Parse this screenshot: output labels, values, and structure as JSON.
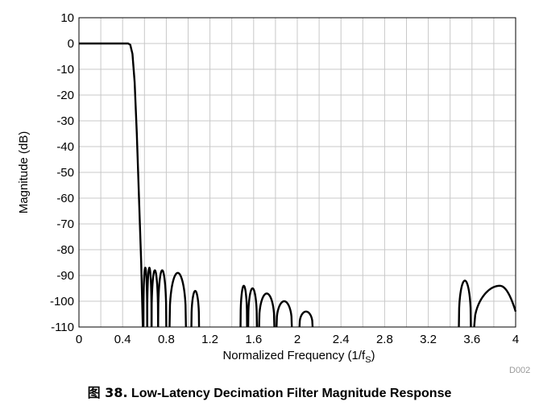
{
  "figure": {
    "caption_prefix": "图 38.",
    "caption_title": "Low-Latency Decimation Filter Magnitude Response",
    "code": "D002"
  },
  "chart_data": {
    "type": "line",
    "xlabel_main": "Normalized Frequency (1/f",
    "xlabel_sub": "S",
    "xlabel_end": ")",
    "ylabel": "Magnitude (dB)",
    "xlim": [
      0,
      4
    ],
    "ylim": [
      -110,
      10
    ],
    "grid": true,
    "x_ticks": [
      0,
      0.4,
      0.8,
      1.2,
      1.6,
      2,
      2.4,
      2.8,
      3.2,
      3.6,
      4
    ],
    "x_tick_labels": [
      "0",
      "0.4",
      "0.8",
      "1.2",
      "1.6",
      "2",
      "2.4",
      "2.8",
      "3.2",
      "3.6",
      "4"
    ],
    "x_minor_step": 0.2,
    "y_ticks": [
      10,
      0,
      -10,
      -20,
      -30,
      -40,
      -50,
      -60,
      -70,
      -80,
      -90,
      -100,
      -110
    ],
    "y_tick_labels": [
      "10",
      "0",
      "-10",
      "-20",
      "-30",
      "-40",
      "-50",
      "-60",
      "-70",
      "-80",
      "-90",
      "-100",
      "-110"
    ],
    "series": [
      {
        "color": "#000000",
        "passband": [
          [
            0,
            0
          ],
          [
            0.45,
            0
          ],
          [
            0.47,
            -0.5
          ],
          [
            0.49,
            -4
          ],
          [
            0.51,
            -15
          ],
          [
            0.53,
            -35
          ],
          [
            0.55,
            -60
          ],
          [
            0.57,
            -85
          ],
          [
            0.585,
            -110
          ]
        ],
        "stopband_lobes": [
          {
            "from": 0.59,
            "to": 0.625,
            "peak": -87
          },
          {
            "from": 0.625,
            "to": 0.665,
            "peak": -87
          },
          {
            "from": 0.665,
            "to": 0.725,
            "peak": -88
          },
          {
            "from": 0.725,
            "to": 0.8,
            "peak": -88
          },
          {
            "from": 0.83,
            "to": 0.98,
            "peak": -89
          },
          {
            "from": 1.03,
            "to": 1.1,
            "peak": -96
          },
          {
            "from": 1.48,
            "to": 1.54,
            "peak": -94
          },
          {
            "from": 1.55,
            "to": 1.63,
            "peak": -95
          },
          {
            "from": 1.65,
            "to": 1.79,
            "peak": -97
          },
          {
            "from": 1.81,
            "to": 1.95,
            "peak": -100
          },
          {
            "from": 2.02,
            "to": 2.14,
            "peak": -104
          },
          {
            "from": 3.48,
            "to": 3.59,
            "peak": -92
          },
          {
            "from": 3.62,
            "to": 4.0,
            "peak": -94
          }
        ],
        "stopband_last_end": -104
      }
    ]
  }
}
